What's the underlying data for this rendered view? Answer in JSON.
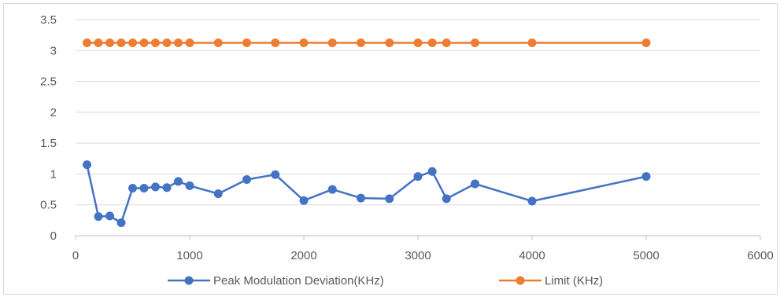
{
  "chart_data": {
    "type": "line",
    "title": "",
    "xlabel": "",
    "ylabel": "",
    "xlim": [
      0,
      6000
    ],
    "ylim": [
      0,
      3.5
    ],
    "x_ticks": [
      "0",
      "1000",
      "2000",
      "3000",
      "4000",
      "5000",
      "6000"
    ],
    "y_ticks": [
      "0",
      "0.5",
      "1",
      "1.5",
      "2",
      "2.5",
      "3",
      "3.5"
    ],
    "grid": "horizontal",
    "legend_position": "bottom",
    "series": [
      {
        "name": "Peak Modulation Deviation(KHz)",
        "color": "#4472c4",
        "x": [
          100,
          200,
          300,
          400,
          500,
          600,
          700,
          800,
          900,
          1000,
          1250,
          1500,
          1750,
          2000,
          2250,
          2500,
          2750,
          3000,
          3125,
          3250,
          3500,
          4000,
          5000
        ],
        "y": [
          1.15,
          0.31,
          0.32,
          0.21,
          0.77,
          0.77,
          0.79,
          0.78,
          0.88,
          0.81,
          0.68,
          0.91,
          0.99,
          0.57,
          0.75,
          0.61,
          0.6,
          0.96,
          1.04,
          0.6,
          0.84,
          0.56,
          0.96
        ]
      },
      {
        "name": "Limit  (KHz)",
        "color": "#ed7d31",
        "x": [
          100,
          200,
          300,
          400,
          500,
          600,
          700,
          800,
          900,
          1000,
          1250,
          1500,
          1750,
          2000,
          2250,
          2500,
          2750,
          3000,
          3125,
          3250,
          3500,
          4000,
          5000
        ],
        "y": [
          3.125,
          3.125,
          3.125,
          3.125,
          3.125,
          3.125,
          3.125,
          3.125,
          3.125,
          3.125,
          3.125,
          3.125,
          3.125,
          3.125,
          3.125,
          3.125,
          3.125,
          3.125,
          3.125,
          3.125,
          3.125,
          3.125,
          3.125
        ]
      }
    ]
  }
}
